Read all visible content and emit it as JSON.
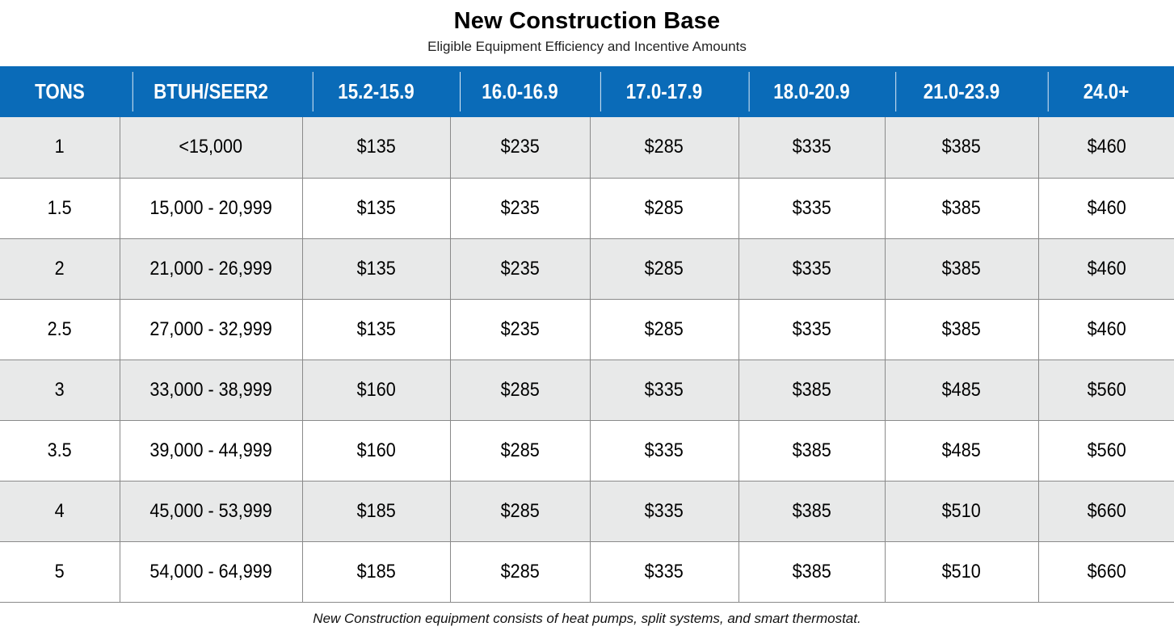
{
  "title": "New Construction Base",
  "subtitle": "Eligible Equipment Efficiency and Incentive Amounts",
  "table": {
    "headers": [
      "TONS",
      "BTUH/SEER2",
      "15.2-15.9",
      "16.0-16.9",
      "17.0-17.9",
      "18.0-20.9",
      "21.0-23.9",
      "24.0+"
    ],
    "header_bg_color": "#0a6bb8",
    "shaded_row_color": "#e8e9e9",
    "rows": [
      [
        "1",
        "<15,000",
        "$135",
        "$235",
        "$285",
        "$335",
        "$385",
        "$460"
      ],
      [
        "1.5",
        "15,000 - 20,999",
        "$135",
        "$235",
        "$285",
        "$335",
        "$385",
        "$460"
      ],
      [
        "2",
        "21,000 - 26,999",
        "$135",
        "$235",
        "$285",
        "$335",
        "$385",
        "$460"
      ],
      [
        "2.5",
        "27,000 - 32,999",
        "$135",
        "$235",
        "$285",
        "$335",
        "$385",
        "$460"
      ],
      [
        "3",
        "33,000 - 38,999",
        "$160",
        "$285",
        "$335",
        "$385",
        "$485",
        "$560"
      ],
      [
        "3.5",
        "39,000 - 44,999",
        "$160",
        "$285",
        "$335",
        "$385",
        "$485",
        "$560"
      ],
      [
        "4",
        "45,000 - 53,999",
        "$185",
        "$285",
        "$335",
        "$385",
        "$510",
        "$660"
      ],
      [
        "5",
        "54,000 - 64,999",
        "$185",
        "$285",
        "$335",
        "$385",
        "$510",
        "$660"
      ]
    ]
  },
  "footnote": "New Construction equipment consists of heat pumps, split systems, and smart thermostat."
}
